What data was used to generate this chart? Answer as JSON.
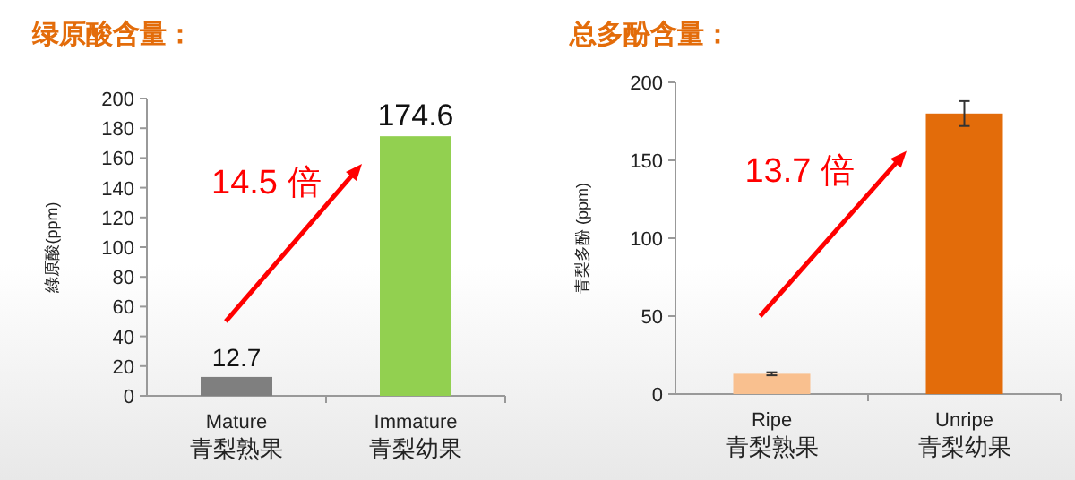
{
  "chart_data": [
    {
      "type": "bar",
      "title": "绿原酸含量：",
      "ylabel": "綠原酸(ppm)",
      "categories": [
        "Mature\n青梨熟果",
        "Immature\n青梨幼果"
      ],
      "values": [
        12.7,
        174.6
      ],
      "colors": [
        "#7f7f7f",
        "#92d050"
      ],
      "ylim": [
        0,
        200
      ],
      "yticks": [
        0,
        20,
        40,
        60,
        80,
        100,
        120,
        140,
        160,
        180,
        200
      ],
      "data_labels": true,
      "annotations": [
        "14.5 倍"
      ]
    },
    {
      "type": "bar",
      "title": "总多酚含量：",
      "ylabel": "青梨多酚 (ppm)",
      "categories": [
        "Ripe\n青梨熟果",
        "Unripe\n青梨幼果"
      ],
      "values": [
        13,
        180
      ],
      "errors": [
        1,
        8
      ],
      "colors": [
        "#f9c08f",
        "#e36c0a"
      ],
      "ylim": [
        0,
        200
      ],
      "yticks": [
        0,
        50,
        100,
        150,
        200
      ],
      "annotations": [
        "13.7 倍"
      ]
    }
  ]
}
